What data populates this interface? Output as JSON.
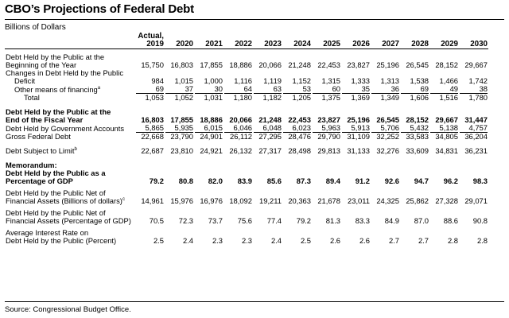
{
  "title": "CBO’s Projections of Federal Debt",
  "subtitle": "Billions of Dollars",
  "header": {
    "first_col_line1": "Actual,",
    "years": [
      "2019",
      "2020",
      "2021",
      "2022",
      "2023",
      "2024",
      "2025",
      "2026",
      "2027",
      "2028",
      "2029",
      "2030"
    ]
  },
  "rows": {
    "beginning": {
      "label1": "Debt Held by the Public at the",
      "label2": "Beginning of the Year",
      "values": [
        "15,750",
        "16,803",
        "17,855",
        "18,886",
        "20,066",
        "21,248",
        "22,453",
        "23,827",
        "25,196",
        "26,545",
        "28,152",
        "29,667"
      ]
    },
    "changes_label": "Changes in Debt Held by the Public",
    "deficit": {
      "label": "Deficit",
      "values": [
        "984",
        "1,015",
        "1,000",
        "1,116",
        "1,119",
        "1,152",
        "1,315",
        "1,333",
        "1,313",
        "1,538",
        "1,466",
        "1,742"
      ]
    },
    "other": {
      "label": "Other means of financing",
      "note": "a",
      "values": [
        "69",
        "37",
        "30",
        "64",
        "63",
        "53",
        "60",
        "35",
        "36",
        "69",
        "49",
        "38"
      ]
    },
    "total": {
      "label": "Total",
      "values": [
        "1,053",
        "1,052",
        "1,031",
        "1,180",
        "1,182",
        "1,205",
        "1,375",
        "1,369",
        "1,349",
        "1,606",
        "1,516",
        "1,780"
      ]
    },
    "end": {
      "label1": "Debt Held by the Public at the",
      "label2": "End of the Fiscal Year",
      "values": [
        "16,803",
        "17,855",
        "18,886",
        "20,066",
        "21,248",
        "22,453",
        "23,827",
        "25,196",
        "26,545",
        "28,152",
        "29,667",
        "31,447"
      ]
    },
    "govt": {
      "label": "Debt Held by Government Accounts",
      "values": [
        "5,865",
        "5,935",
        "6,015",
        "6,046",
        "6,048",
        "6,023",
        "5,963",
        "5,913",
        "5,706",
        "5,432",
        "5,138",
        "4,757"
      ]
    },
    "gross": {
      "label": "Gross Federal Debt",
      "values": [
        "22,668",
        "23,790",
        "24,901",
        "26,112",
        "27,295",
        "28,476",
        "29,790",
        "31,109",
        "32,252",
        "33,583",
        "34,805",
        "36,204"
      ]
    },
    "limit": {
      "label": "Debt Subject to Limit",
      "note": "b",
      "values": [
        "22,687",
        "23,810",
        "24,921",
        "26,132",
        "27,317",
        "28,498",
        "29,813",
        "31,133",
        "32,276",
        "33,609",
        "34,831",
        "36,231"
      ]
    },
    "memo": {
      "label1": "Memorandum:",
      "label2": "Debt Held by the Public as a",
      "label3": "Percentage of GDP",
      "values": [
        "79.2",
        "80.8",
        "82.0",
        "83.9",
        "85.6",
        "87.3",
        "89.4",
        "91.2",
        "92.6",
        "94.7",
        "96.2",
        "98.3"
      ]
    },
    "net_dollars": {
      "label1": "Debt Held by the Public Net of",
      "label2": "Financial Assets (Billions of dollars)",
      "note": "c",
      "values": [
        "14,961",
        "15,976",
        "16,976",
        "18,092",
        "19,211",
        "20,363",
        "21,678",
        "23,011",
        "24,325",
        "25,862",
        "27,328",
        "29,071"
      ]
    },
    "net_pct": {
      "label1": "Debt Held by the Public Net of",
      "label2": "Financial Assets (Percentage of GDP)",
      "values": [
        "70.5",
        "72.3",
        "73.7",
        "75.6",
        "77.4",
        "79.2",
        "81.3",
        "83.3",
        "84.9",
        "87.0",
        "88.6",
        "90.8"
      ]
    },
    "interest": {
      "label1": "Average Interest Rate on",
      "label2": "Debt Held by the Public (Percent)",
      "values": [
        "2.5",
        "2.4",
        "2.3",
        "2.3",
        "2.4",
        "2.5",
        "2.6",
        "2.6",
        "2.7",
        "2.7",
        "2.8",
        "2.8"
      ]
    }
  },
  "source": "Source: Congressional Budget Office."
}
